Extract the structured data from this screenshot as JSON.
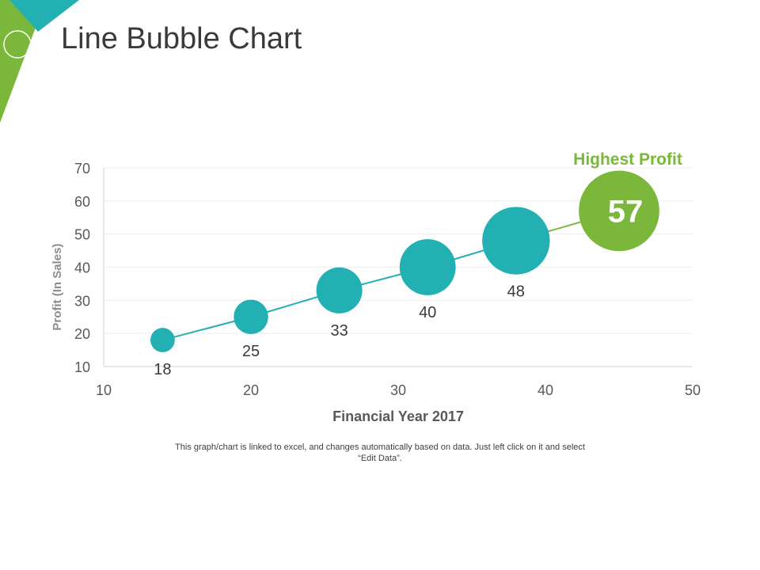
{
  "slide": {
    "title": "Line Bubble Chart",
    "footnote_line1": "This graph/chart is linked to excel, and changes automatically based on data. Just left click on it and select",
    "footnote_line2": "“Edit Data”."
  },
  "colors": {
    "teal": "#22b0b3",
    "green": "#7ab73a",
    "grid": "#ececec",
    "text": "#595959"
  },
  "chart_data": {
    "type": "scatter",
    "title": "",
    "xlabel": "Financial Year 2017",
    "ylabel": "Profit  (In Sales)",
    "xlim": [
      10,
      50
    ],
    "ylim": [
      10,
      70
    ],
    "xticks": [
      10,
      20,
      30,
      40,
      50
    ],
    "yticks": [
      10,
      20,
      30,
      40,
      50,
      60,
      70
    ],
    "grid": true,
    "callout": "Highest Profit",
    "points": [
      {
        "x": 14,
        "y": 18,
        "label": "18"
      },
      {
        "x": 20,
        "y": 25,
        "label": "25"
      },
      {
        "x": 26,
        "y": 33,
        "label": "33"
      },
      {
        "x": 32,
        "y": 40,
        "label": "40"
      },
      {
        "x": 38,
        "y": 48,
        "label": "48"
      },
      {
        "x": 45,
        "y": 57,
        "label": "57",
        "highlight": true
      }
    ]
  }
}
